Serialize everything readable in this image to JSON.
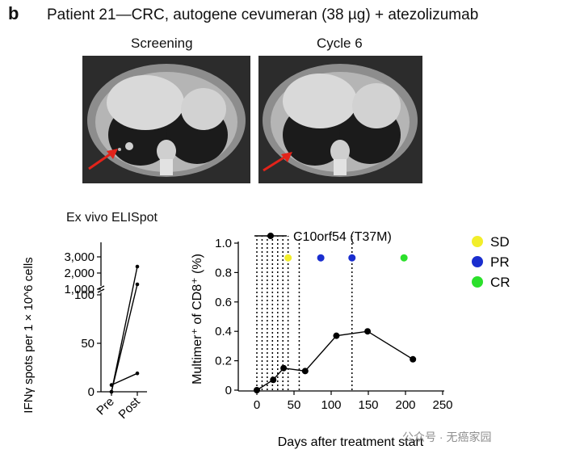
{
  "figure": {
    "panel_letter": "b",
    "title": "Patient 21—CRC, autogene cevumeran (38 µg) + atezolizumab"
  },
  "ct_scans": [
    {
      "label": "Screening"
    },
    {
      "label": "Cycle 6"
    }
  ],
  "watermark": "公众号 · 无癌家园",
  "chart_data": [
    {
      "type": "line",
      "title": "Ex vivo ELISpot",
      "ylabel": "IFNγ spots per 1 × 10^6 cells",
      "categories": [
        "Pre",
        "Post"
      ],
      "yticks_lower": [
        "0",
        "50",
        "100"
      ],
      "yticks_upper": [
        "1,000",
        "2,000",
        "3,000"
      ],
      "axis_break": true,
      "series": [
        {
          "values": [
            0,
            2400
          ]
        },
        {
          "values": [
            0,
            1300
          ]
        },
        {
          "values": [
            7,
            19
          ]
        }
      ]
    },
    {
      "type": "line",
      "xlabel": "Days after treatment start",
      "ylabel": "Multimer⁺ of CD8⁺ (%)",
      "xlim": [
        0,
        250
      ],
      "ylim": [
        0,
        1.0
      ],
      "xticks": [
        "0",
        "50",
        "100",
        "150",
        "200",
        "250"
      ],
      "yticks": [
        "0",
        "0.2",
        "0.4",
        "0.6",
        "0.8",
        "1.0"
      ],
      "series": [
        {
          "name": "C10orf54 (T37M)",
          "color": "#000000",
          "x": [
            0,
            22,
            36,
            65,
            107,
            149,
            210
          ],
          "y": [
            0.0,
            0.07,
            0.15,
            0.13,
            0.37,
            0.4,
            0.21
          ]
        }
      ],
      "vlines_x": [
        0,
        7,
        14,
        21,
        28,
        35,
        42,
        57,
        128
      ],
      "responses": [
        {
          "label": "SD",
          "color": "#f2ee2a",
          "x": 42
        },
        {
          "label": "PR",
          "color": "#1a2ecf",
          "x": 86
        },
        {
          "label": "PR",
          "color": "#1a2ecf",
          "x": 128
        },
        {
          "label": "CR",
          "color": "#2be02b",
          "x": 198
        }
      ],
      "legend": [
        {
          "label": "SD",
          "color": "#f2ee2a"
        },
        {
          "label": "PR",
          "color": "#1a2ecf"
        },
        {
          "label": "CR",
          "color": "#2be02b"
        }
      ]
    }
  ]
}
